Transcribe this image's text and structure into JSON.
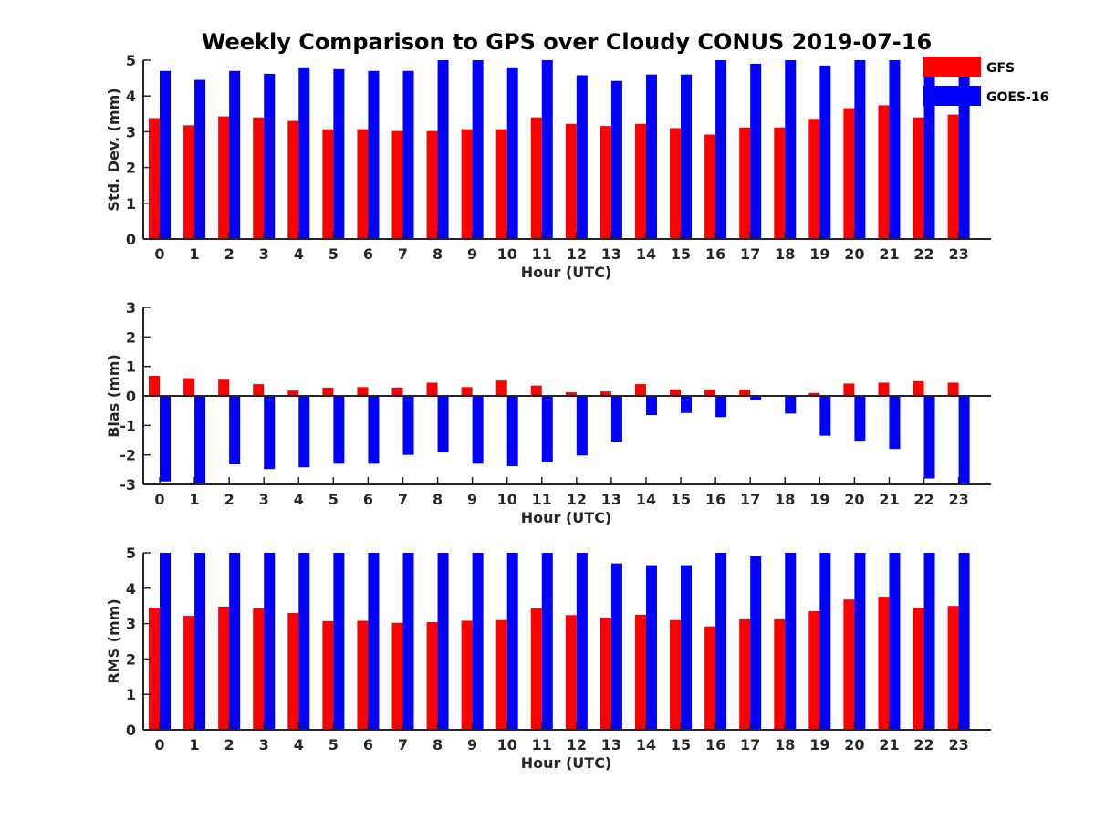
{
  "title": "Weekly Comparison to GPS over Cloudy CONUS 2019-07-16",
  "colors": {
    "GFS": "#ff0000",
    "GOES-16": "#0000ff",
    "axis": "#262626"
  },
  "legend": {
    "entries": [
      "GFS",
      "GOES-16"
    ],
    "placement": "top-right"
  },
  "chart_data": [
    {
      "type": "bar",
      "title": "Weekly Comparison to GPS over Cloudy CONUS 2019-07-16",
      "xlabel": "Hour (UTC)",
      "ylabel": "Std. Dev. (mm)",
      "ylim": [
        0,
        5
      ],
      "yticks": [
        0,
        1,
        2,
        3,
        4,
        5
      ],
      "categories": [
        "0",
        "1",
        "2",
        "3",
        "4",
        "5",
        "6",
        "7",
        "8",
        "9",
        "10",
        "11",
        "12",
        "13",
        "14",
        "15",
        "16",
        "17",
        "18",
        "19",
        "20",
        "21",
        "22",
        "23"
      ],
      "series": [
        {
          "name": "GFS",
          "values": [
            3.38,
            3.18,
            3.43,
            3.4,
            3.3,
            3.07,
            3.07,
            3.02,
            3.02,
            3.07,
            3.07,
            3.4,
            3.22,
            3.16,
            3.22,
            3.1,
            2.92,
            3.12,
            3.12,
            3.36,
            3.66,
            3.74,
            3.4,
            3.48
          ]
        },
        {
          "name": "GOES-16",
          "values": [
            4.7,
            4.45,
            4.7,
            4.62,
            4.8,
            4.75,
            4.7,
            4.7,
            5.0,
            5.0,
            4.8,
            5.0,
            4.58,
            4.42,
            4.6,
            4.6,
            5.0,
            4.9,
            5.0,
            4.85,
            5.0,
            5.0,
            4.85,
            4.6
          ]
        }
      ],
      "grid": false
    },
    {
      "type": "bar",
      "xlabel": "Hour (UTC)",
      "ylabel": "Bias (mm)",
      "ylim": [
        -3,
        3
      ],
      "yticks": [
        -3,
        -2,
        -1,
        0,
        1,
        2,
        3
      ],
      "categories": [
        "0",
        "1",
        "2",
        "3",
        "4",
        "5",
        "6",
        "7",
        "8",
        "9",
        "10",
        "11",
        "12",
        "13",
        "14",
        "15",
        "16",
        "17",
        "18",
        "19",
        "20",
        "21",
        "22",
        "23"
      ],
      "series": [
        {
          "name": "GFS",
          "values": [
            0.68,
            0.6,
            0.55,
            0.4,
            0.18,
            0.28,
            0.3,
            0.28,
            0.45,
            0.3,
            0.52,
            0.35,
            0.12,
            0.15,
            0.4,
            0.22,
            0.22,
            0.22,
            0.02,
            0.1,
            0.42,
            0.45,
            0.5,
            0.45
          ]
        },
        {
          "name": "GOES-16",
          "values": [
            -2.9,
            -2.95,
            -2.32,
            -2.48,
            -2.42,
            -2.3,
            -2.3,
            -2.0,
            -1.92,
            -2.3,
            -2.38,
            -2.25,
            -2.02,
            -1.55,
            -0.65,
            -0.58,
            -0.72,
            -0.15,
            -0.6,
            -1.35,
            -1.52,
            -1.8,
            -2.8,
            -3.0
          ]
        }
      ],
      "grid": false
    },
    {
      "type": "bar",
      "xlabel": "Hour (UTC)",
      "ylabel": "RMS (mm)",
      "ylim": [
        0,
        5
      ],
      "yticks": [
        0,
        1,
        2,
        3,
        4,
        5
      ],
      "categories": [
        "0",
        "1",
        "2",
        "3",
        "4",
        "5",
        "6",
        "7",
        "8",
        "9",
        "10",
        "11",
        "12",
        "13",
        "14",
        "15",
        "16",
        "17",
        "18",
        "19",
        "20",
        "21",
        "22",
        "23"
      ],
      "series": [
        {
          "name": "GFS",
          "values": [
            3.45,
            3.22,
            3.48,
            3.43,
            3.3,
            3.07,
            3.08,
            3.02,
            3.04,
            3.08,
            3.1,
            3.43,
            3.24,
            3.17,
            3.25,
            3.1,
            2.92,
            3.12,
            3.12,
            3.35,
            3.68,
            3.76,
            3.45,
            3.5
          ]
        },
        {
          "name": "GOES-16",
          "values": [
            5.0,
            5.0,
            5.0,
            5.0,
            5.0,
            5.0,
            5.0,
            5.0,
            5.0,
            5.0,
            5.0,
            5.0,
            5.0,
            4.7,
            4.65,
            4.65,
            5.0,
            4.9,
            5.0,
            5.0,
            5.0,
            5.0,
            5.0,
            5.0
          ]
        }
      ],
      "grid": false
    }
  ]
}
